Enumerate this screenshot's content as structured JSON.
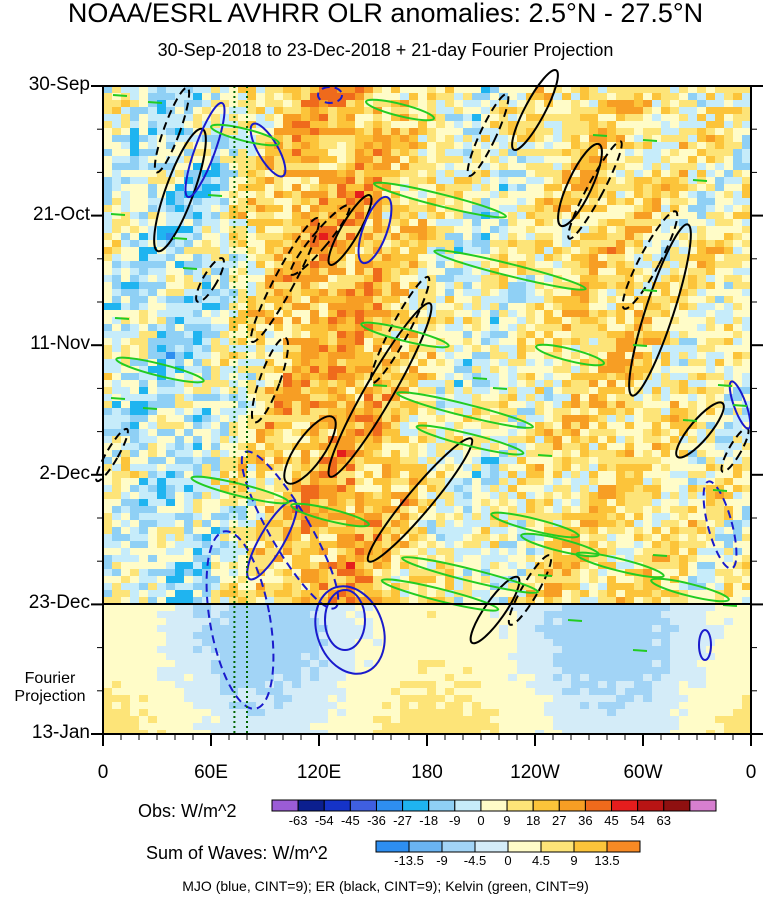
{
  "title": "NOAA/ESRL AVHRR OLR anomalies: 2.5°N - 27.5°N",
  "subtitle": "30-Sep-2018 to 23-Dec-2018 + 21-day Fourier Projection",
  "chart_data": {
    "type": "heatmap",
    "description_axes": "Hovmoller: longitude (x) vs time (y, downward)",
    "x": {
      "ticks": [
        "0",
        "60E",
        "120E",
        "180",
        "120W",
        "60W",
        "0"
      ],
      "range_deg": [
        0,
        360
      ]
    },
    "y": {
      "ticks": [
        "30-Sep",
        "21-Oct",
        "11-Nov",
        "2-Dec",
        "23-Dec",
        "13-Jan"
      ],
      "range_days": [
        0,
        105
      ],
      "observed_end": "23-Dec",
      "projection_label": "Fourier Projection"
    },
    "reference_lines": [
      {
        "style": "dotted",
        "color": "#006400",
        "longitude": 73
      },
      {
        "style": "dotted",
        "color": "#006400",
        "longitude": 80
      },
      {
        "style": "solid",
        "color": "#000000",
        "date": "23-Dec"
      }
    ],
    "overlays": [
      {
        "name": "MJO",
        "color": "#1a1acc",
        "cint": 9
      },
      {
        "name": "ER",
        "color": "#000000",
        "cint": 9
      },
      {
        "name": "Kelvin",
        "color": "#22cc22",
        "cint": 9
      }
    ],
    "obs_colorbar": {
      "label": "Obs: W/m^2",
      "ticks": [
        "-63",
        "-54",
        "-45",
        "-36",
        "-27",
        "-18",
        "-9",
        "0",
        "9",
        "18",
        "27",
        "36",
        "45",
        "54",
        "63"
      ],
      "colors": [
        "#9b5cd6",
        "#0b1f8f",
        "#1533c8",
        "#3f5fe0",
        "#2e8ef0",
        "#1fb4f0",
        "#8fd0f5",
        "#c6ecfa",
        "#fffcc8",
        "#fde478",
        "#fcc43a",
        "#f79e24",
        "#ef6a1c",
        "#e51d1d",
        "#b81414",
        "#8f1010",
        "#d77fd0"
      ]
    },
    "waves_colorbar": {
      "label": "Sum of Waves: W/m^2",
      "ticks": [
        "-13.5",
        "-9",
        "-4.5",
        "0",
        "4.5",
        "9",
        "13.5"
      ],
      "colors": [
        "#2e8ef0",
        "#6ab4f2",
        "#a2d4f6",
        "#d4ecf8",
        "#fffcc8",
        "#fde478",
        "#fcc43a",
        "#f78a24"
      ]
    },
    "footer": "MJO (blue, CINT=9); ER (black, CINT=9); Kelvin (green, CINT=9)"
  }
}
